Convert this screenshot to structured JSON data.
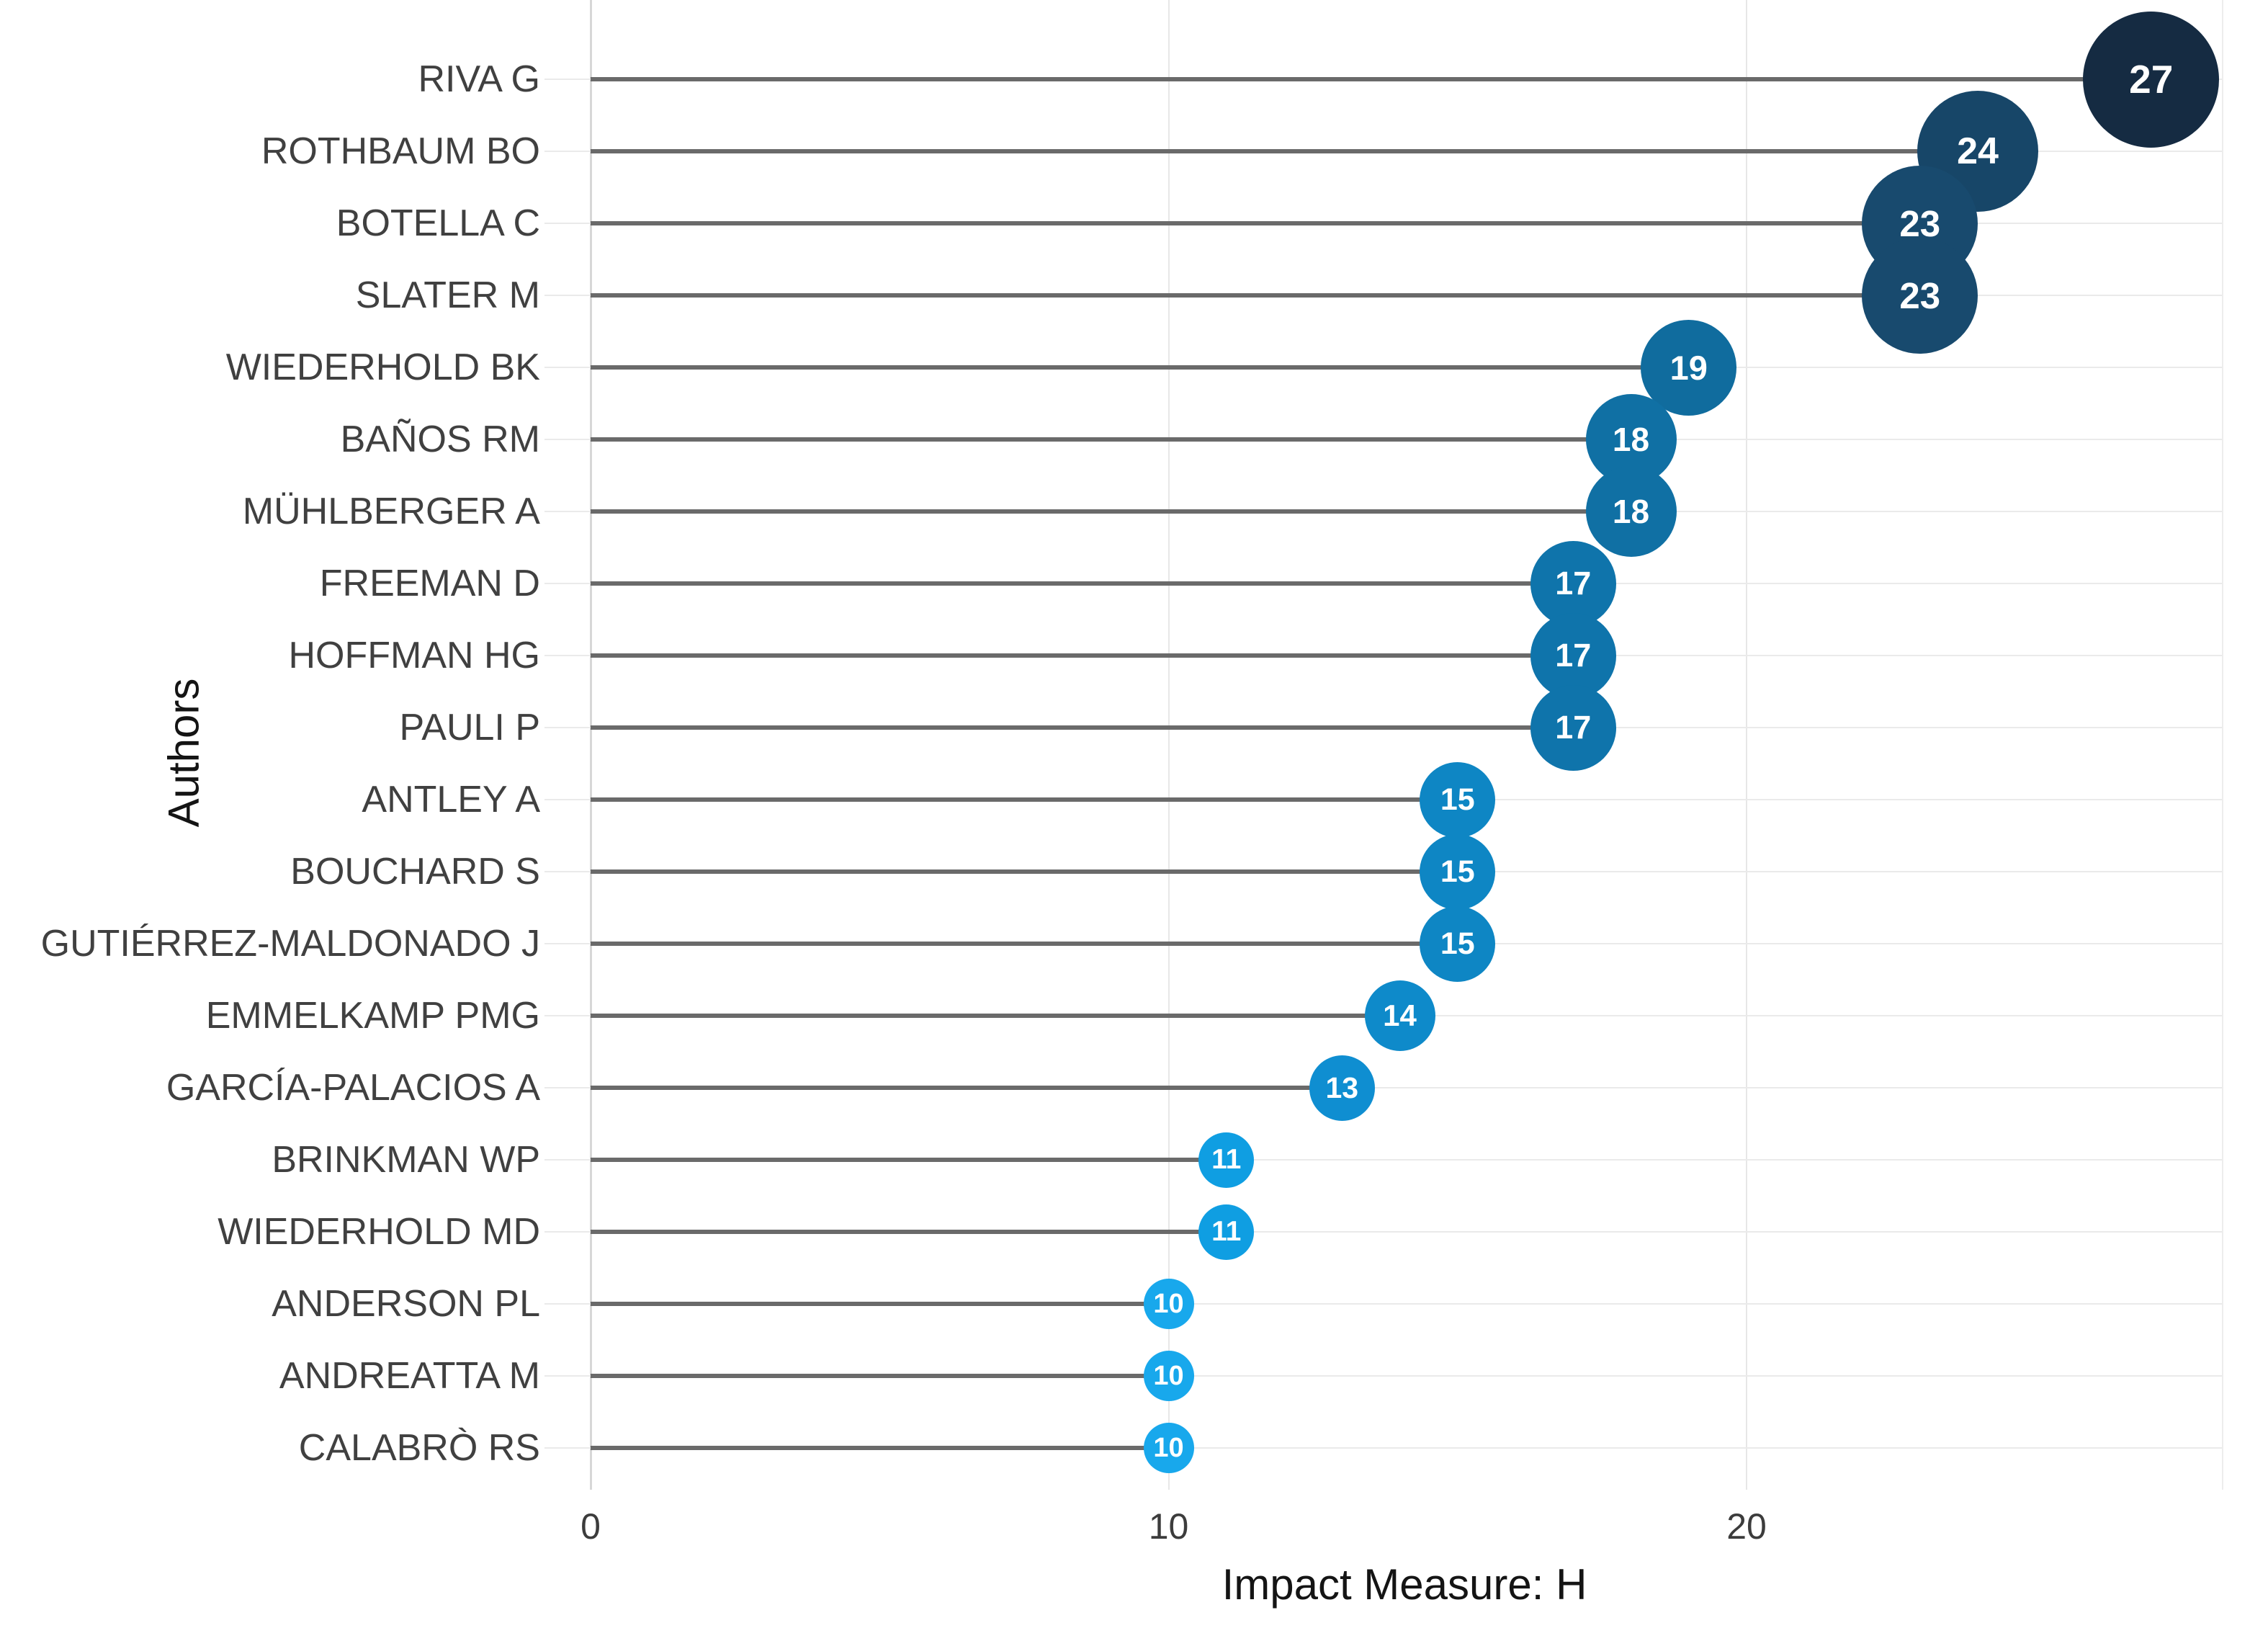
{
  "chart_data": {
    "type": "scatter",
    "subtype": "horizontal-lollipop",
    "title": "",
    "xlabel": "Impact Measure: H",
    "ylabel": "Authors",
    "xlim": [
      0,
      29
    ],
    "xticks": [
      "0",
      "10",
      "20"
    ],
    "xtick_values": [
      0,
      10,
      20
    ],
    "grid": true,
    "legend": "none",
    "categories": [
      "RIVA G",
      "ROTHBAUM BO",
      "BOTELLA C",
      "SLATER M",
      "WIEDERHOLD BK",
      "BAÑOS RM",
      "MÜHLBERGER A",
      "FREEMAN D",
      "HOFFMAN HG",
      "PAULI P",
      "ANTLEY A",
      "BOUCHARD S",
      "GUTIÉRREZ-MALDONADO J",
      "EMMELKAMP PMG",
      "GARCÍA-PALACIOS A",
      "BRINKMAN WP",
      "WIEDERHOLD MD",
      "ANDERSON PL",
      "ANDREATTA M",
      "CALABRÒ RS"
    ],
    "values": [
      27,
      24,
      23,
      23,
      19,
      18,
      18,
      17,
      17,
      17,
      15,
      15,
      15,
      14,
      13,
      11,
      11,
      10,
      10,
      10
    ],
    "colors": [
      "#152b42",
      "#174668",
      "#184a6e",
      "#184a6e",
      "#106c9e",
      "#1070a4",
      "#1070a4",
      "#0f74ab",
      "#0f74ab",
      "#0f74ab",
      "#0e86c4",
      "#0e86c4",
      "#0e86c4",
      "#0e8aca",
      "#0f8ed1",
      "#0f9ee2",
      "#0f9ee2",
      "#18a8ec",
      "#18a8ec",
      "#18a8ec"
    ],
    "stem_color": "#6a6a6a",
    "gridline_color": "#eaeaea",
    "axis_line_color": "#d7d7d7",
    "author_label_color": "#404040",
    "tick_label_color": "#3c3c3c",
    "axis_title_color": "#141414",
    "bubble_value_color": "#ffffff"
  }
}
